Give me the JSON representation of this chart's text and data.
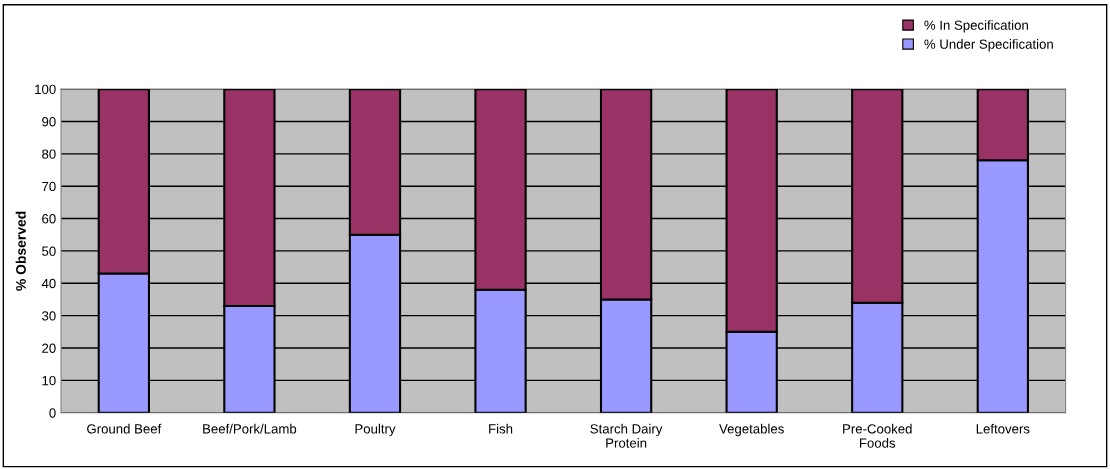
{
  "chart_data": {
    "type": "bar",
    "stacked": true,
    "ylabel": "% Observed",
    "categories": [
      "Ground Beef",
      "Beef/Pork/Lamb",
      "Poultry",
      "Fish",
      "Starch Dairy\nProtein",
      "Vegetables",
      "Pre-Cooked\nFoods",
      "Leftovers"
    ],
    "series": [
      {
        "name": "% Under Specification",
        "color": "#9999ff",
        "values": [
          43,
          33,
          55,
          38,
          35,
          25,
          34,
          78
        ]
      },
      {
        "name": "% In Specification",
        "color": "#993366",
        "values": [
          57,
          67,
          45,
          62,
          65,
          75,
          66,
          22
        ]
      }
    ],
    "ylim": [
      0,
      100
    ],
    "yticks": [
      0,
      10,
      20,
      30,
      40,
      50,
      60,
      70,
      80,
      90,
      100
    ],
    "grid": "y",
    "legend": "top right"
  }
}
